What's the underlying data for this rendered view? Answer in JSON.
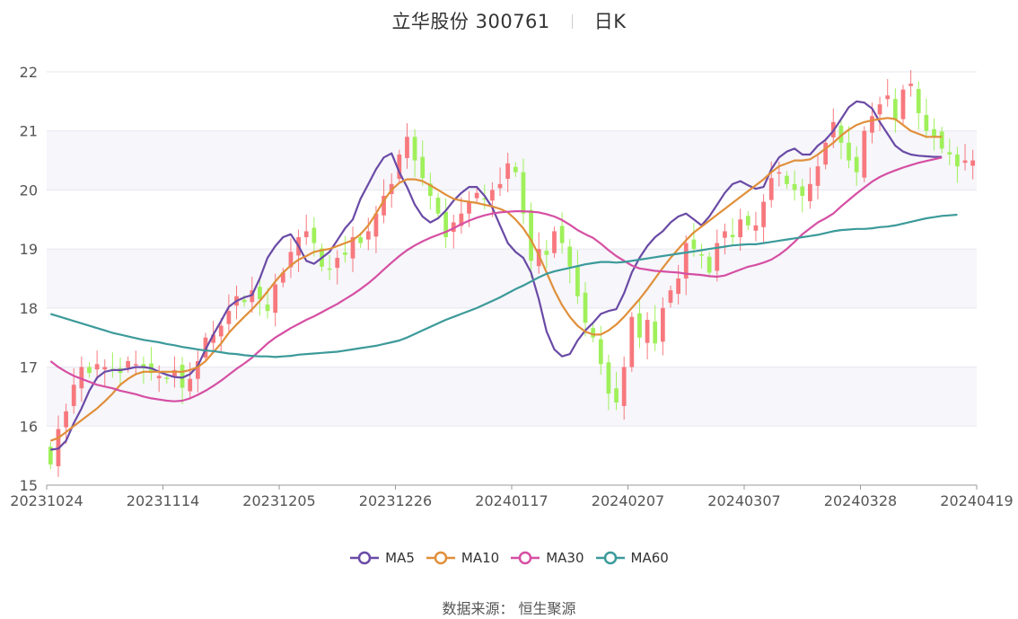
{
  "title": {
    "name": "立华股份 300761",
    "period": "日K"
  },
  "source": "数据来源：  恒生聚源",
  "colors": {
    "up": "#f7787d",
    "down": "#9ff05a",
    "MA5": "#6a4aa6",
    "MA10": "#e08f3a",
    "MA30": "#d64fa3",
    "MA60": "#3c9a9a",
    "band": "#f6f6fb",
    "grid": "#e6e6ef"
  },
  "chart_data": {
    "type": "candlestick",
    "ylim": [
      15,
      22
    ],
    "yticks": [
      15,
      16,
      17,
      18,
      19,
      20,
      21,
      22
    ],
    "xtick_labels": [
      "20231024",
      "20231114",
      "20231205",
      "20231226",
      "20240117",
      "20240207",
      "20240307",
      "20240328",
      "20240419"
    ],
    "legend": [
      "MA5",
      "MA10",
      "MA30",
      "MA60"
    ],
    "legend_position": "bottom",
    "close": [
      15.35,
      15.95,
      16.25,
      16.7,
      17.0,
      16.9,
      17.05,
      17.0,
      16.95,
      16.9,
      17.1,
      17.05,
      17.0,
      16.9,
      16.85,
      16.8,
      16.95,
      16.65,
      16.8,
      17.1,
      17.5,
      17.55,
      17.7,
      17.95,
      18.2,
      18.1,
      18.3,
      18.15,
      17.95,
      18.4,
      18.6,
      18.95,
      19.2,
      19.3,
      19.1,
      18.7,
      18.65,
      18.85,
      18.9,
      19.2,
      19.1,
      19.3,
      19.6,
      19.9,
      20.1,
      20.6,
      20.9,
      20.5,
      20.2,
      19.9,
      19.6,
      19.2,
      19.45,
      19.6,
      19.8,
      19.95,
      19.85,
      20.0,
      20.1,
      20.45,
      20.3,
      19.6,
      18.8,
      19.0,
      18.9,
      19.3,
      19.1,
      18.7,
      18.2,
      17.75,
      17.5,
      17.05,
      16.55,
      16.4,
      17.0,
      17.85,
      17.5,
      17.8,
      17.4,
      18.0,
      18.3,
      18.5,
      19.1,
      19.0,
      18.9,
      18.6,
      19.1,
      19.3,
      19.2,
      19.5,
      19.4,
      19.4,
      19.8,
      20.2,
      20.3,
      20.1,
      20.0,
      19.9,
      20.1,
      20.4,
      20.8,
      21.15,
      20.8,
      20.5,
      20.3,
      21.0,
      21.25,
      21.45,
      21.6,
      21.2,
      21.7,
      21.8,
      21.3,
      21.0,
      20.9,
      20.7,
      20.6,
      20.4,
      20.5,
      20.5
    ],
    "ma_series": {
      "MA5": [
        15.6,
        15.62,
        15.75,
        16.05,
        16.3,
        16.6,
        16.82,
        16.92,
        16.95,
        16.95,
        16.97,
        17.0,
        17.0,
        16.98,
        16.92,
        16.87,
        16.83,
        16.82,
        16.88,
        17.02,
        17.3,
        17.55,
        17.78,
        18.02,
        18.12,
        18.18,
        18.22,
        18.5,
        18.85,
        19.05,
        19.2,
        19.25,
        19.05,
        18.8,
        18.75,
        18.85,
        18.95,
        19.15,
        19.35,
        19.5,
        19.85,
        20.1,
        20.35,
        20.55,
        20.62,
        20.3,
        20.05,
        19.75,
        19.55,
        19.45,
        19.52,
        19.65,
        19.82,
        19.95,
        20.05,
        20.05,
        19.9,
        19.7,
        19.4,
        19.1,
        18.95,
        18.85,
        18.6,
        18.15,
        17.6,
        17.3,
        17.18,
        17.22,
        17.45,
        17.62,
        17.75,
        17.9,
        17.95,
        17.98,
        18.25,
        18.6,
        18.85,
        19.05,
        19.2,
        19.3,
        19.45,
        19.55,
        19.6,
        19.5,
        19.4,
        19.55,
        19.75,
        19.95,
        20.1,
        20.15,
        20.08,
        20.02,
        20.05,
        20.35,
        20.55,
        20.65,
        20.7,
        20.6,
        20.6,
        20.75,
        20.85,
        21.0,
        21.2,
        21.4,
        21.5,
        21.48,
        21.38,
        21.15,
        20.95,
        20.75,
        20.65,
        20.6,
        20.58,
        20.57,
        20.56,
        20.56
      ],
      "MA10": [
        15.75,
        15.8,
        15.9,
        16.0,
        16.1,
        16.2,
        16.3,
        16.42,
        16.55,
        16.7,
        16.8,
        16.88,
        16.92,
        16.92,
        16.92,
        16.92,
        16.92,
        16.92,
        16.95,
        17.0,
        17.1,
        17.25,
        17.4,
        17.58,
        17.72,
        17.85,
        17.98,
        18.12,
        18.28,
        18.45,
        18.6,
        18.72,
        18.82,
        18.88,
        18.95,
        18.98,
        19.0,
        19.05,
        19.1,
        19.15,
        19.25,
        19.4,
        19.6,
        19.82,
        20.0,
        20.12,
        20.18,
        20.18,
        20.15,
        20.08,
        20.0,
        19.92,
        19.85,
        19.82,
        19.8,
        19.78,
        19.75,
        19.72,
        19.68,
        19.62,
        19.5,
        19.35,
        19.15,
        18.9,
        18.6,
        18.3,
        18.05,
        17.85,
        17.7,
        17.6,
        17.55,
        17.55,
        17.62,
        17.72,
        17.85,
        18.0,
        18.15,
        18.32,
        18.5,
        18.68,
        18.85,
        19.0,
        19.15,
        19.28,
        19.38,
        19.48,
        19.58,
        19.68,
        19.78,
        19.88,
        19.98,
        20.08,
        20.18,
        20.3,
        20.4,
        20.45,
        20.5,
        20.5,
        20.52,
        20.6,
        20.7,
        20.8,
        20.92,
        21.02,
        21.1,
        21.15,
        21.18,
        21.2,
        21.22,
        21.2,
        21.1,
        21.0,
        20.95,
        20.9,
        20.9,
        20.9
      ],
      "MA30": [
        17.1,
        17.0,
        16.92,
        16.85,
        16.8,
        16.75,
        16.7,
        16.67,
        16.64,
        16.6,
        16.57,
        16.54,
        16.5,
        16.47,
        16.45,
        16.43,
        16.42,
        16.43,
        16.47,
        16.53,
        16.6,
        16.68,
        16.77,
        16.87,
        16.97,
        17.06,
        17.16,
        17.28,
        17.4,
        17.5,
        17.58,
        17.66,
        17.73,
        17.8,
        17.86,
        17.93,
        18.0,
        18.07,
        18.15,
        18.23,
        18.32,
        18.42,
        18.53,
        18.65,
        18.77,
        18.88,
        18.98,
        19.06,
        19.13,
        19.19,
        19.24,
        19.29,
        19.35,
        19.42,
        19.48,
        19.53,
        19.57,
        19.6,
        19.62,
        19.63,
        19.64,
        19.64,
        19.63,
        19.62,
        19.59,
        19.55,
        19.49,
        19.41,
        19.32,
        19.25,
        19.19,
        19.09,
        18.98,
        18.88,
        18.8,
        18.72,
        18.67,
        18.65,
        18.63,
        18.62,
        18.61,
        18.6,
        18.58,
        18.57,
        18.56,
        18.54,
        18.53,
        18.55,
        18.6,
        18.65,
        18.7,
        18.73,
        18.77,
        18.82,
        18.9,
        19.0,
        19.12,
        19.25,
        19.35,
        19.45,
        19.52,
        19.6,
        19.72,
        19.83,
        19.94,
        20.04,
        20.14,
        20.22,
        20.28,
        20.33,
        20.38,
        20.42,
        20.46,
        20.49,
        20.52,
        20.55
      ],
      "MA60": [
        17.9,
        17.86,
        17.82,
        17.78,
        17.74,
        17.7,
        17.66,
        17.62,
        17.58,
        17.55,
        17.52,
        17.49,
        17.46,
        17.44,
        17.42,
        17.39,
        17.37,
        17.34,
        17.32,
        17.3,
        17.28,
        17.27,
        17.25,
        17.23,
        17.22,
        17.2,
        17.19,
        17.18,
        17.18,
        17.17,
        17.18,
        17.19,
        17.21,
        17.22,
        17.23,
        17.24,
        17.25,
        17.26,
        17.28,
        17.3,
        17.32,
        17.34,
        17.36,
        17.39,
        17.42,
        17.45,
        17.5,
        17.56,
        17.62,
        17.68,
        17.74,
        17.8,
        17.85,
        17.9,
        17.95,
        18.0,
        18.06,
        18.12,
        18.18,
        18.25,
        18.32,
        18.38,
        18.45,
        18.52,
        18.58,
        18.62,
        18.65,
        18.68,
        18.71,
        18.74,
        18.76,
        18.78,
        18.78,
        18.77,
        18.78,
        18.8,
        18.82,
        18.84,
        18.86,
        18.88,
        18.9,
        18.92,
        18.94,
        18.96,
        18.98,
        19.0,
        19.02,
        19.04,
        19.06,
        19.07,
        19.08,
        19.08,
        19.1,
        19.12,
        19.14,
        19.16,
        19.18,
        19.2,
        19.22,
        19.24,
        19.27,
        19.3,
        19.32,
        19.33,
        19.34,
        19.34,
        19.35,
        19.37,
        19.38,
        19.4,
        19.43,
        19.46,
        19.49,
        19.52,
        19.54,
        19.56,
        19.57,
        19.58
      ]
    }
  }
}
